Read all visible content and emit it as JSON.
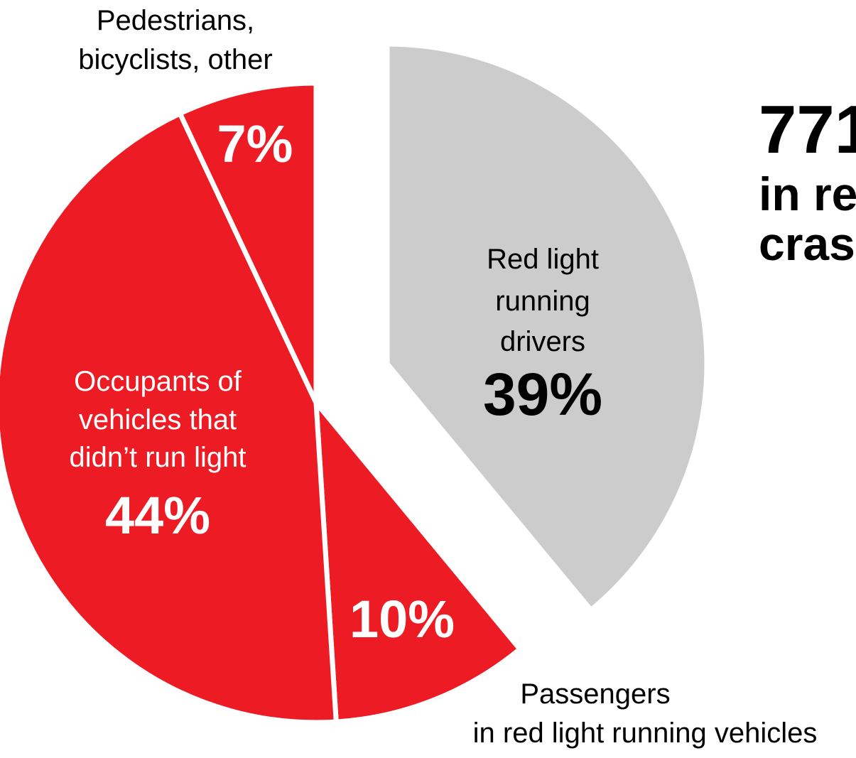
{
  "chart_data": {
    "type": "pie",
    "title": "771",
    "subtitle": [
      "in re",
      "cras"
    ],
    "slices": [
      {
        "label": [
          "Red light",
          "running",
          "drivers"
        ],
        "value": 39,
        "value_label": "39%",
        "color": "#CCCCCC",
        "exploded": true
      },
      {
        "label": [
          "Passengers",
          "in red light running vehicles"
        ],
        "value": 10,
        "value_label": "10%",
        "color": "#ED1C24"
      },
      {
        "label": [
          "Occupants of",
          "vehicles that",
          "didn’t run light"
        ],
        "value": 44,
        "value_label": "44%",
        "color": "#ED1C24"
      },
      {
        "label": [
          "Pedestrians,",
          "bicyclists, other"
        ],
        "value": 7,
        "value_label": "7%",
        "color": "#ED1C24"
      }
    ],
    "colors": {
      "highlight": "#ED1C24",
      "neutral": "#CCCCCC",
      "text_on_red": "#FFFFFF",
      "text": "#000000"
    }
  }
}
